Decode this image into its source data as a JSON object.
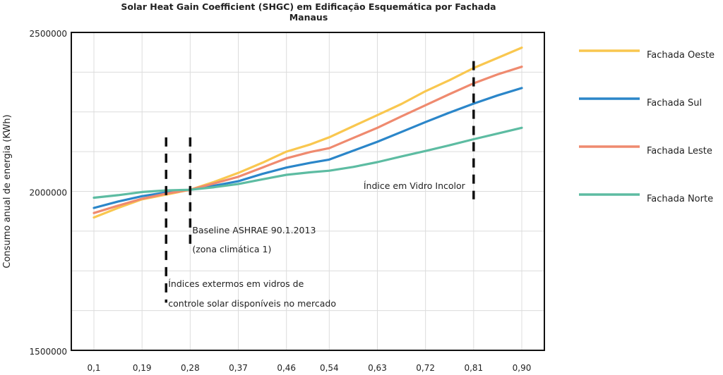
{
  "chart_data": {
    "type": "line",
    "title": [
      "Solar Heat Gain Coefficient (SHGC) em Edificação Esquemática por Fachada",
      "Manaus"
    ],
    "ylabel": "Consumo anual de energia (KWh)",
    "xlabel": "",
    "categories": [
      "0,1",
      "0,19",
      "0,28",
      "0,37",
      "0,46",
      "0,54",
      "0,63",
      "0,72",
      "0,81",
      "0,90"
    ],
    "x": [
      0.1,
      0.145,
      0.19,
      0.235,
      0.28,
      0.325,
      0.37,
      0.415,
      0.46,
      0.505,
      0.54,
      0.585,
      0.63,
      0.675,
      0.72,
      0.765,
      0.81,
      0.855,
      0.9
    ],
    "ylim": [
      1500000,
      2500000
    ],
    "yticks": [
      "1500000",
      "2000000",
      "2500000"
    ],
    "grid": true,
    "legend_position": "right",
    "series": [
      {
        "name": "Fachada Oeste",
        "color": "#F9C74F",
        "values": [
          1918000,
          1948000,
          1975000,
          1990000,
          2005000,
          2030000,
          2058000,
          2090000,
          2125000,
          2148000,
          2170000,
          2205000,
          2240000,
          2275000,
          2315000,
          2350000,
          2388000,
          2420000,
          2452000
        ]
      },
      {
        "name": "Fachada Sul",
        "color": "#2B86C9",
        "values": [
          1948000,
          1968000,
          1985000,
          1997000,
          2005000,
          2018000,
          2032000,
          2055000,
          2075000,
          2090000,
          2100000,
          2128000,
          2156000,
          2187000,
          2218000,
          2248000,
          2276000,
          2302000,
          2325000
        ]
      },
      {
        "name": "Fachada Leste",
        "color": "#EF8A6F",
        "values": [
          1932000,
          1955000,
          1977000,
          1993000,
          2005000,
          2025000,
          2046000,
          2075000,
          2104000,
          2124000,
          2136000,
          2168000,
          2200000,
          2236000,
          2271000,
          2306000,
          2340000,
          2368000,
          2392000
        ]
      },
      {
        "name": "Fachada Norte",
        "color": "#5DBCA2",
        "values": [
          1980000,
          1988000,
          1998000,
          2003000,
          2005000,
          2013000,
          2023000,
          2038000,
          2052000,
          2060000,
          2065000,
          2077000,
          2092000,
          2110000,
          2127000,
          2145000,
          2164000,
          2182000,
          2200000
        ]
      }
    ],
    "annotations": [
      {
        "x": 0.235,
        "y_from": 1650000,
        "y_to": 2170000,
        "style": "dashed",
        "lines": [
          "Índices extermos em vidros de",
          "controle solar disponíveis no mercado"
        ],
        "label_y": [
          1700000,
          1638000
        ]
      },
      {
        "x": 0.28,
        "y_from": 1820000,
        "y_to": 2170000,
        "style": "dashed",
        "lines": [
          "Baseline ASHRAE 90.1.2013",
          "(zona climática 1)"
        ],
        "label_y": [
          1868000,
          1808000
        ]
      },
      {
        "x": 0.81,
        "y_from": 1975000,
        "y_to": 2410000,
        "style": "dashed",
        "lines": [
          "Índice em Vidro Incolor"
        ],
        "label_y": [
          2008000
        ],
        "anchor": "end"
      }
    ]
  }
}
